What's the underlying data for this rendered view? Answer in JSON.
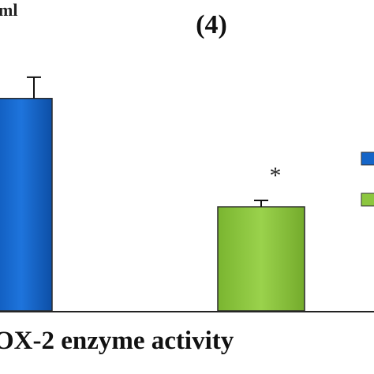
{
  "chart_data": {
    "type": "bar",
    "title": "(4)",
    "ylabel_fragment": "ml",
    "xlabel": "OX-2 enzyme activity",
    "series": [
      {
        "value": 100,
        "error": 10,
        "color": "#1565c8",
        "significance": ""
      },
      {
        "value": 49,
        "error": 3,
        "color": "#8cc63f",
        "significance": "*"
      }
    ],
    "ylim": [
      0,
      120
    ],
    "grid": false,
    "legend": "right, cut off",
    "legend_colors": [
      "#1565c8",
      "#8cc63f"
    ]
  }
}
